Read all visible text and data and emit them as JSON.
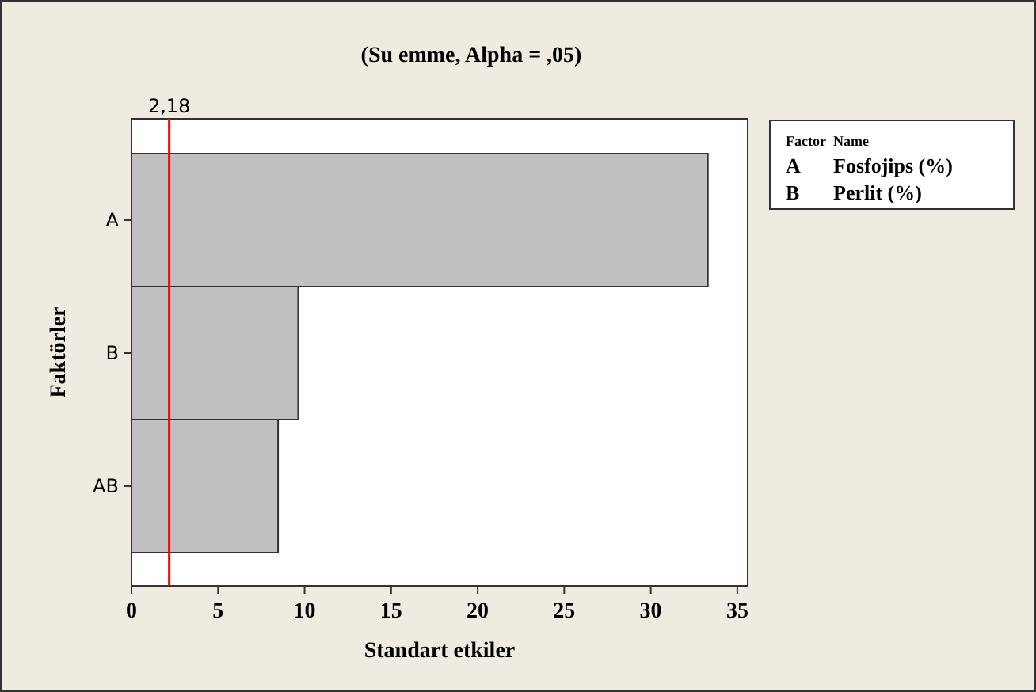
{
  "chart_data": {
    "type": "bar",
    "orientation": "horizontal",
    "title": "(Su emme, Alpha = ,05)",
    "xlabel": "Standart etkiler",
    "ylabel": "Faktörler",
    "categories": [
      "A",
      "B",
      "AB"
    ],
    "values": [
      33.3,
      9.63,
      8.47
    ],
    "color": "#c0c0c0",
    "xlim": [
      0,
      35.6
    ],
    "xticks": [
      0,
      5,
      10,
      15,
      20,
      25,
      30,
      35
    ],
    "ref_lines": [
      {
        "axis": "x",
        "value": 2.18,
        "label": "2,18",
        "color": "#ff0000"
      }
    ],
    "annotations": [
      "Factor",
      "Name",
      "A",
      "Fosfojips (%)",
      "B",
      "Perlit (%)"
    ]
  }
}
